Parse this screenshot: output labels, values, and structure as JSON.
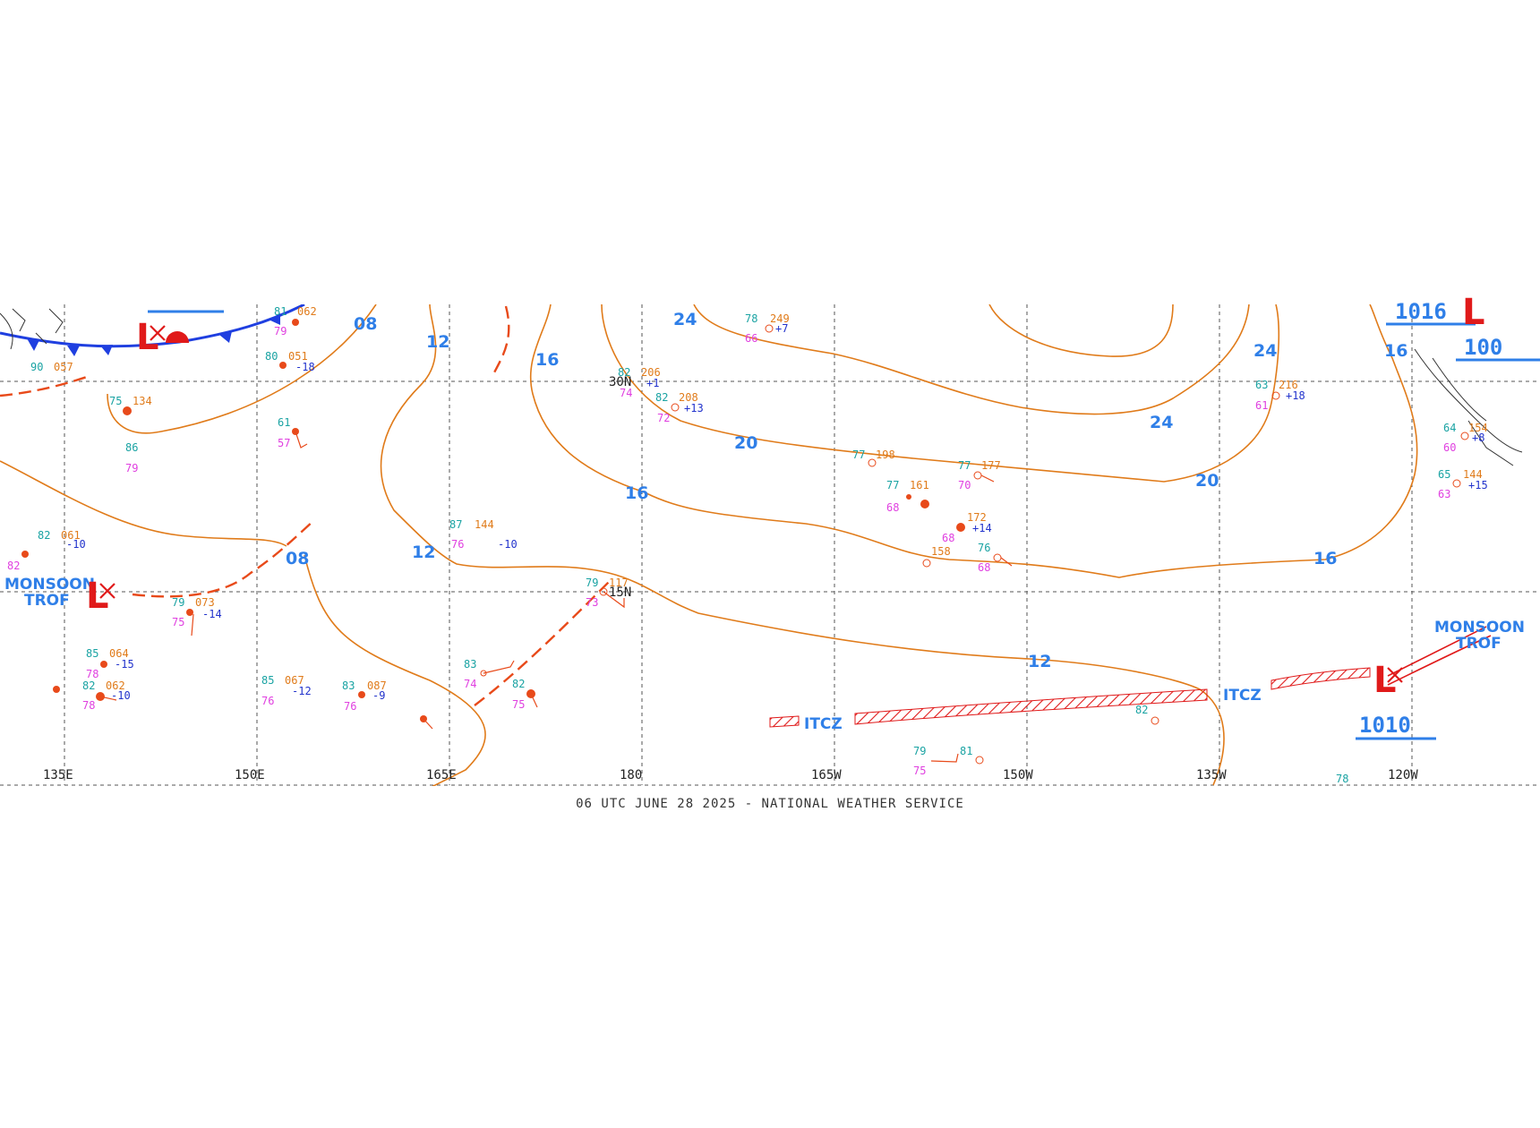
{
  "map": {
    "longitude_labels": [
      "135E",
      "150E",
      "165E",
      "180",
      "165W",
      "150W",
      "135W",
      "120W"
    ],
    "latitude_labels": [
      "30N",
      "15N"
    ],
    "isobar_labels": [
      "08",
      "12",
      "16",
      "20",
      "24"
    ],
    "features": {
      "itcz": "ITCZ",
      "monsoon_trof_west": [
        "MONSOON",
        "TROF"
      ],
      "monsoon_trof_east": [
        "MONSOON",
        "TROF"
      ],
      "low_symbol": "L",
      "pressure_east_low": "1010",
      "pressure_ne_high": "1016",
      "pressure_ne_partial": "100"
    },
    "observations": [
      {
        "t": "78",
        "p": "249",
        "d": "66",
        "c": "+7"
      },
      {
        "t": "82",
        "p": "206",
        "d": "74",
        "c": "+1"
      },
      {
        "t": "82",
        "p": "208",
        "d": "72",
        "c": "+13"
      },
      {
        "t": "77",
        "p": "198",
        "d": "",
        "c": ""
      },
      {
        "t": "77",
        "p": "177",
        "d": "70",
        "c": ""
      },
      {
        "t": "77",
        "p": "161",
        "d": "68",
        "c": ""
      },
      {
        "t": "",
        "p": "172",
        "d": "68",
        "c": "+14"
      },
      {
        "t": "76",
        "p": "158",
        "d": "68",
        "c": ""
      },
      {
        "t": "63",
        "p": "216",
        "d": "61",
        "c": "+18"
      },
      {
        "t": "65",
        "p": "144",
        "d": "63",
        "c": "+15"
      },
      {
        "t": "64",
        "p": "154",
        "d": "60",
        "c": "+8"
      },
      {
        "t": "80",
        "p": "051",
        "d": "",
        "c": "-18"
      },
      {
        "t": "75",
        "p": "134",
        "d": "",
        "c": ""
      },
      {
        "t": "82",
        "p": "061",
        "d": "82",
        "c": "-10"
      },
      {
        "t": "79",
        "p": "073",
        "d": "75",
        "c": "-14"
      },
      {
        "t": "85",
        "p": "064",
        "d": "78",
        "c": "-15"
      },
      {
        "t": "82",
        "p": "062",
        "d": "78",
        "c": "-10"
      },
      {
        "t": "85",
        "p": "067",
        "d": "76",
        "c": "-12"
      },
      {
        "t": "83",
        "p": "087",
        "d": "76",
        "c": "-9"
      },
      {
        "t": "87",
        "p": "144",
        "d": "76",
        "c": "-10"
      },
      {
        "t": "79",
        "p": "117",
        "d": "73",
        "c": ""
      },
      {
        "t": "83",
        "p": "",
        "d": "74",
        "c": ""
      },
      {
        "t": "82",
        "p": "",
        "d": "75",
        "c": ""
      },
      {
        "t": "79",
        "p": "",
        "d": "75",
        "c": ""
      },
      {
        "t": "81",
        "p": "",
        "d": "",
        "c": ""
      },
      {
        "t": "82",
        "p": "",
        "d": "",
        "c": ""
      },
      {
        "t": "78",
        "p": "",
        "d": "",
        "c": ""
      },
      {
        "t": "61",
        "p": "",
        "d": "57",
        "c": ""
      },
      {
        "t": "86",
        "p": "",
        "d": "79",
        "c": ""
      },
      {
        "t": "81",
        "p": "062",
        "d": "79",
        "c": ""
      },
      {
        "t": "90",
        "p": "057",
        "d": "",
        "c": ""
      }
    ]
  },
  "footer": "06 UTC JUNE 28 2025 - NATIONAL WEATHER SERVICE",
  "colors": {
    "isobar": "#e07b1a",
    "label_blue": "#2f7fe8",
    "front_blue": "#1f3fe0",
    "front_red": "#e01a1a",
    "grid": "#555555"
  }
}
